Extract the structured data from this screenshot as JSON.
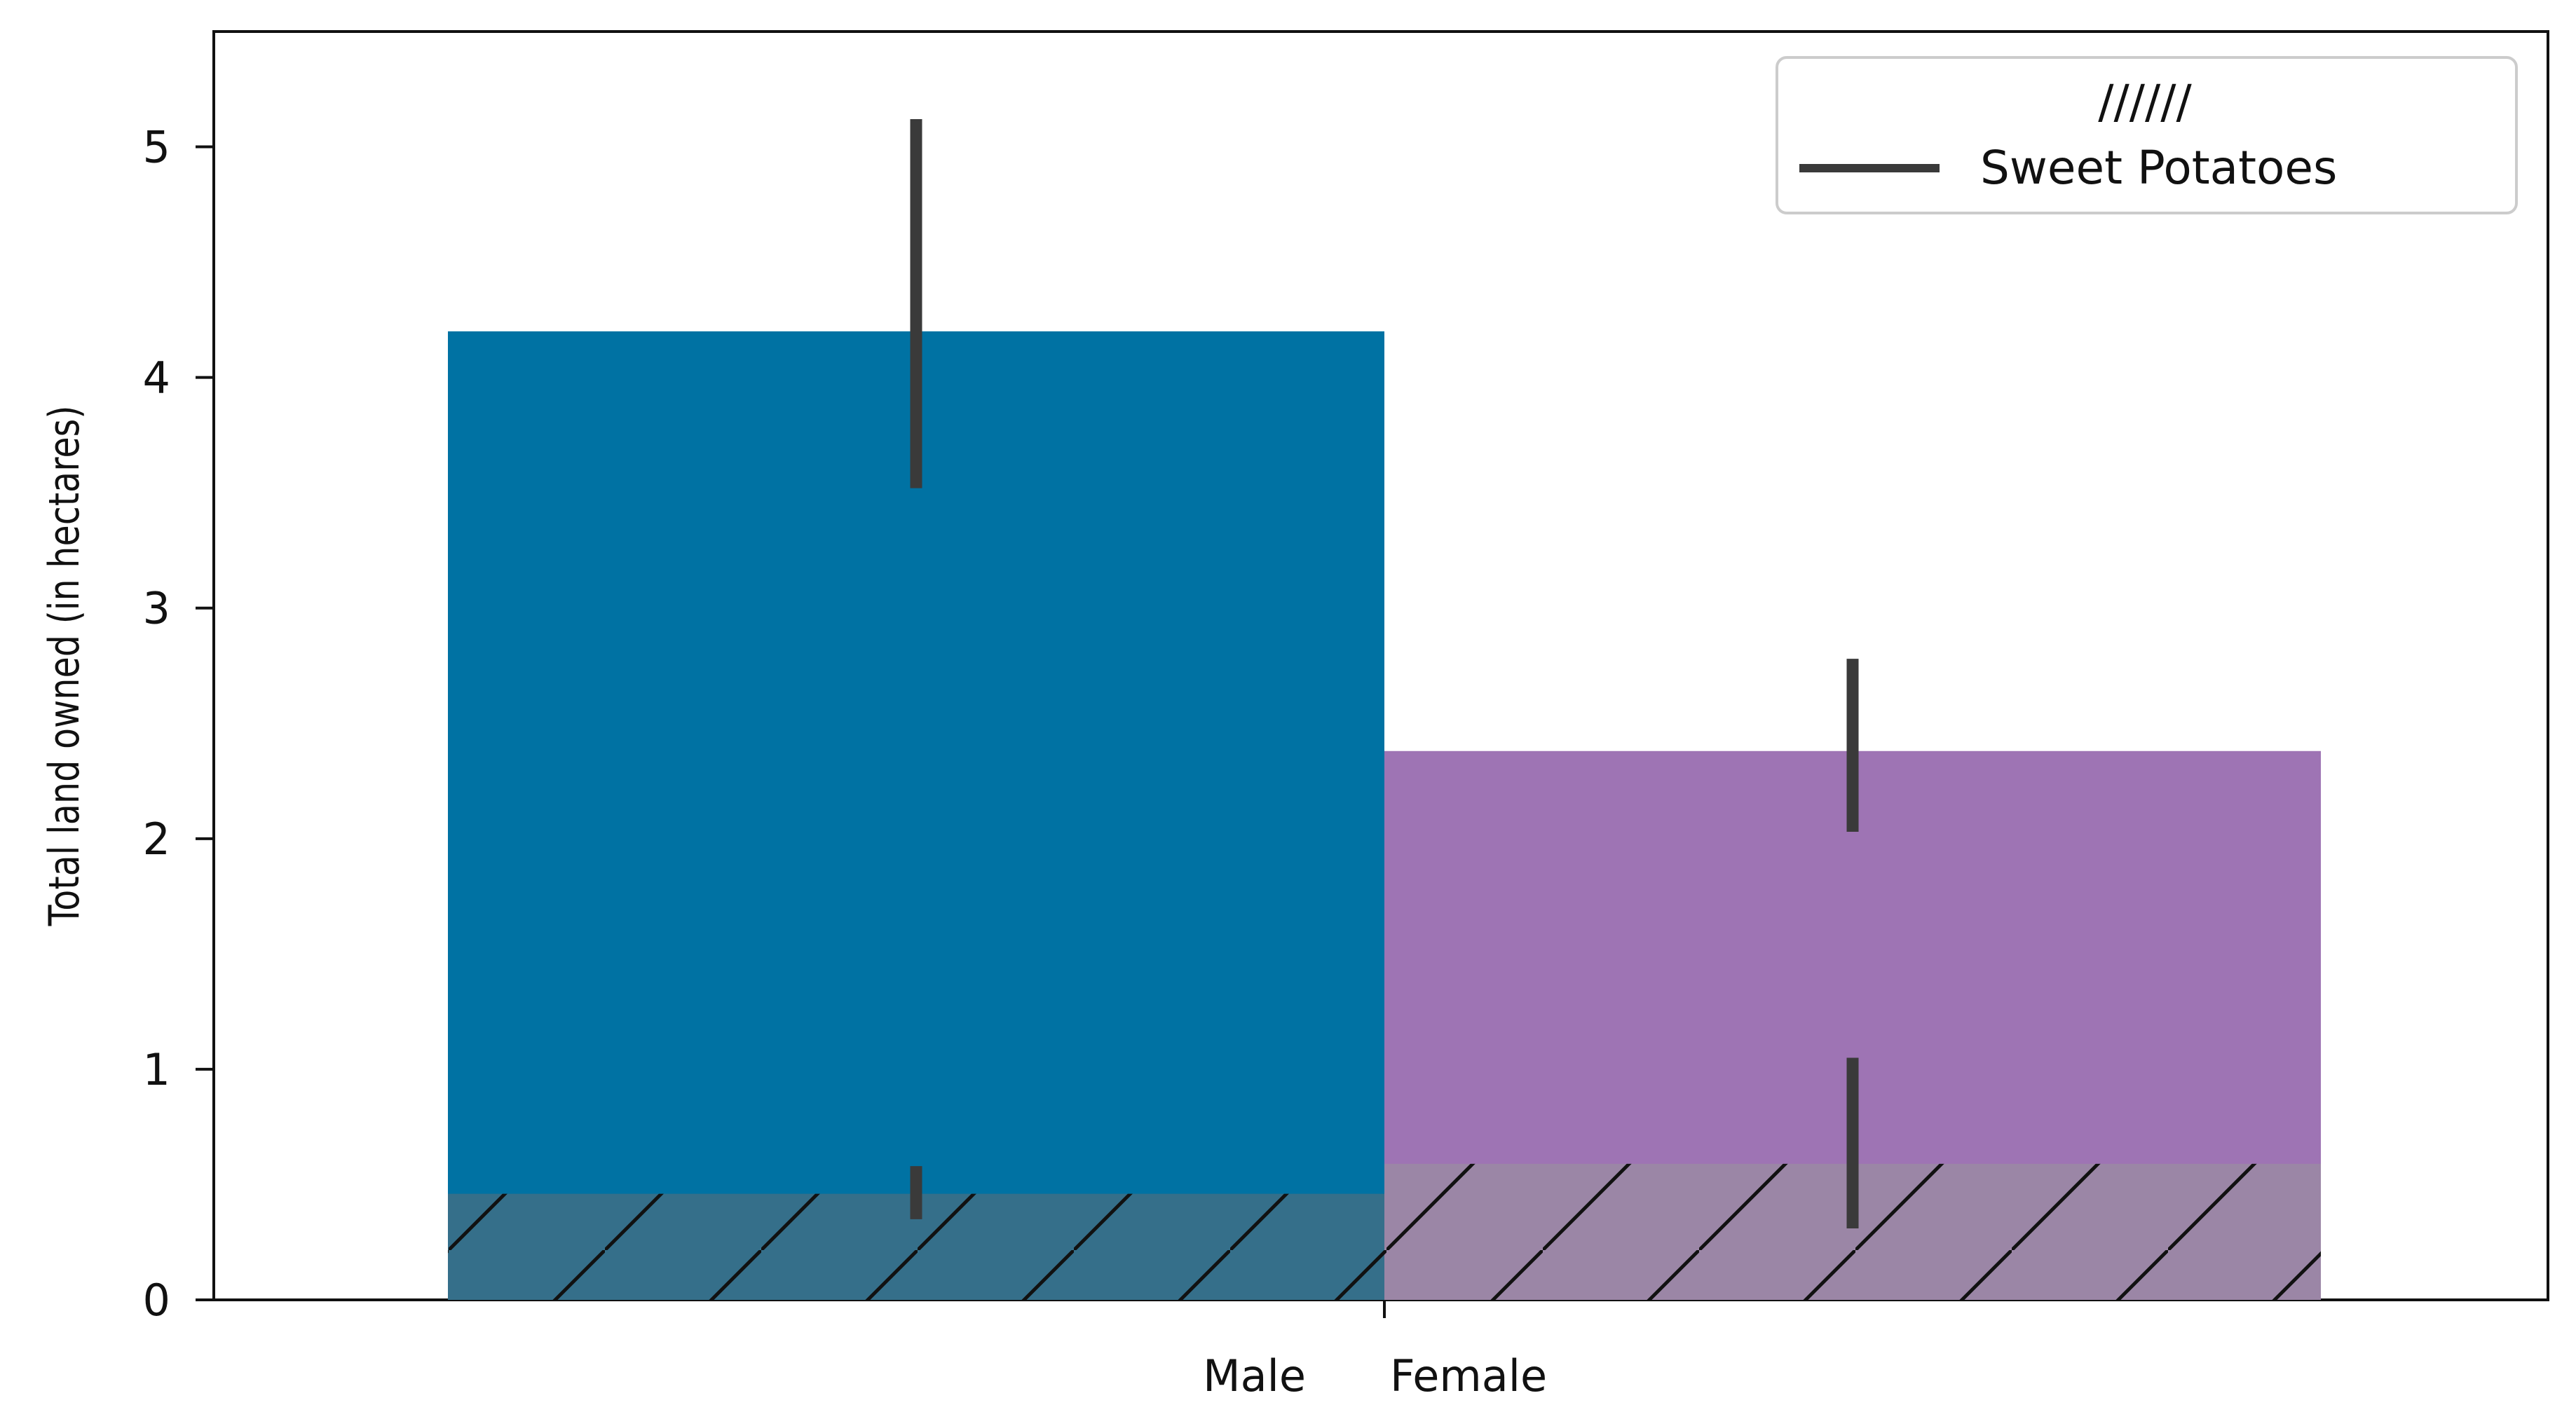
{
  "chart_data": {
    "type": "bar",
    "title": "",
    "xlabel": "",
    "ylabel": "Total land owned (in hectares)",
    "ylim": [
      0,
      5.5
    ],
    "yticks": [
      "0",
      "1",
      "2",
      "3",
      "4",
      "5"
    ],
    "categories": [
      "Male",
      "Female"
    ],
    "series": [
      {
        "name": "",
        "values": [
          4.2,
          2.38
        ],
        "error_low": [
          3.52,
          2.03
        ],
        "error_high": [
          5.12,
          2.78
        ],
        "colors": [
          "#0072a3",
          "#9e74b4"
        ],
        "hatch": ""
      },
      {
        "name": "",
        "values": [
          0.46,
          0.59
        ],
        "error_low": [
          0.35,
          0.31
        ],
        "error_high": [
          0.58,
          1.05
        ],
        "colors": [
          "#356f8a",
          "#9b86a6"
        ],
        "hatch": "//"
      }
    ],
    "legend": {
      "position": "top-right",
      "entries": [
        {
          "marker": "hatch",
          "label": "//////"
        },
        {
          "marker": "line",
          "label": "Sweet Potatoes"
        }
      ]
    },
    "grid": false
  }
}
